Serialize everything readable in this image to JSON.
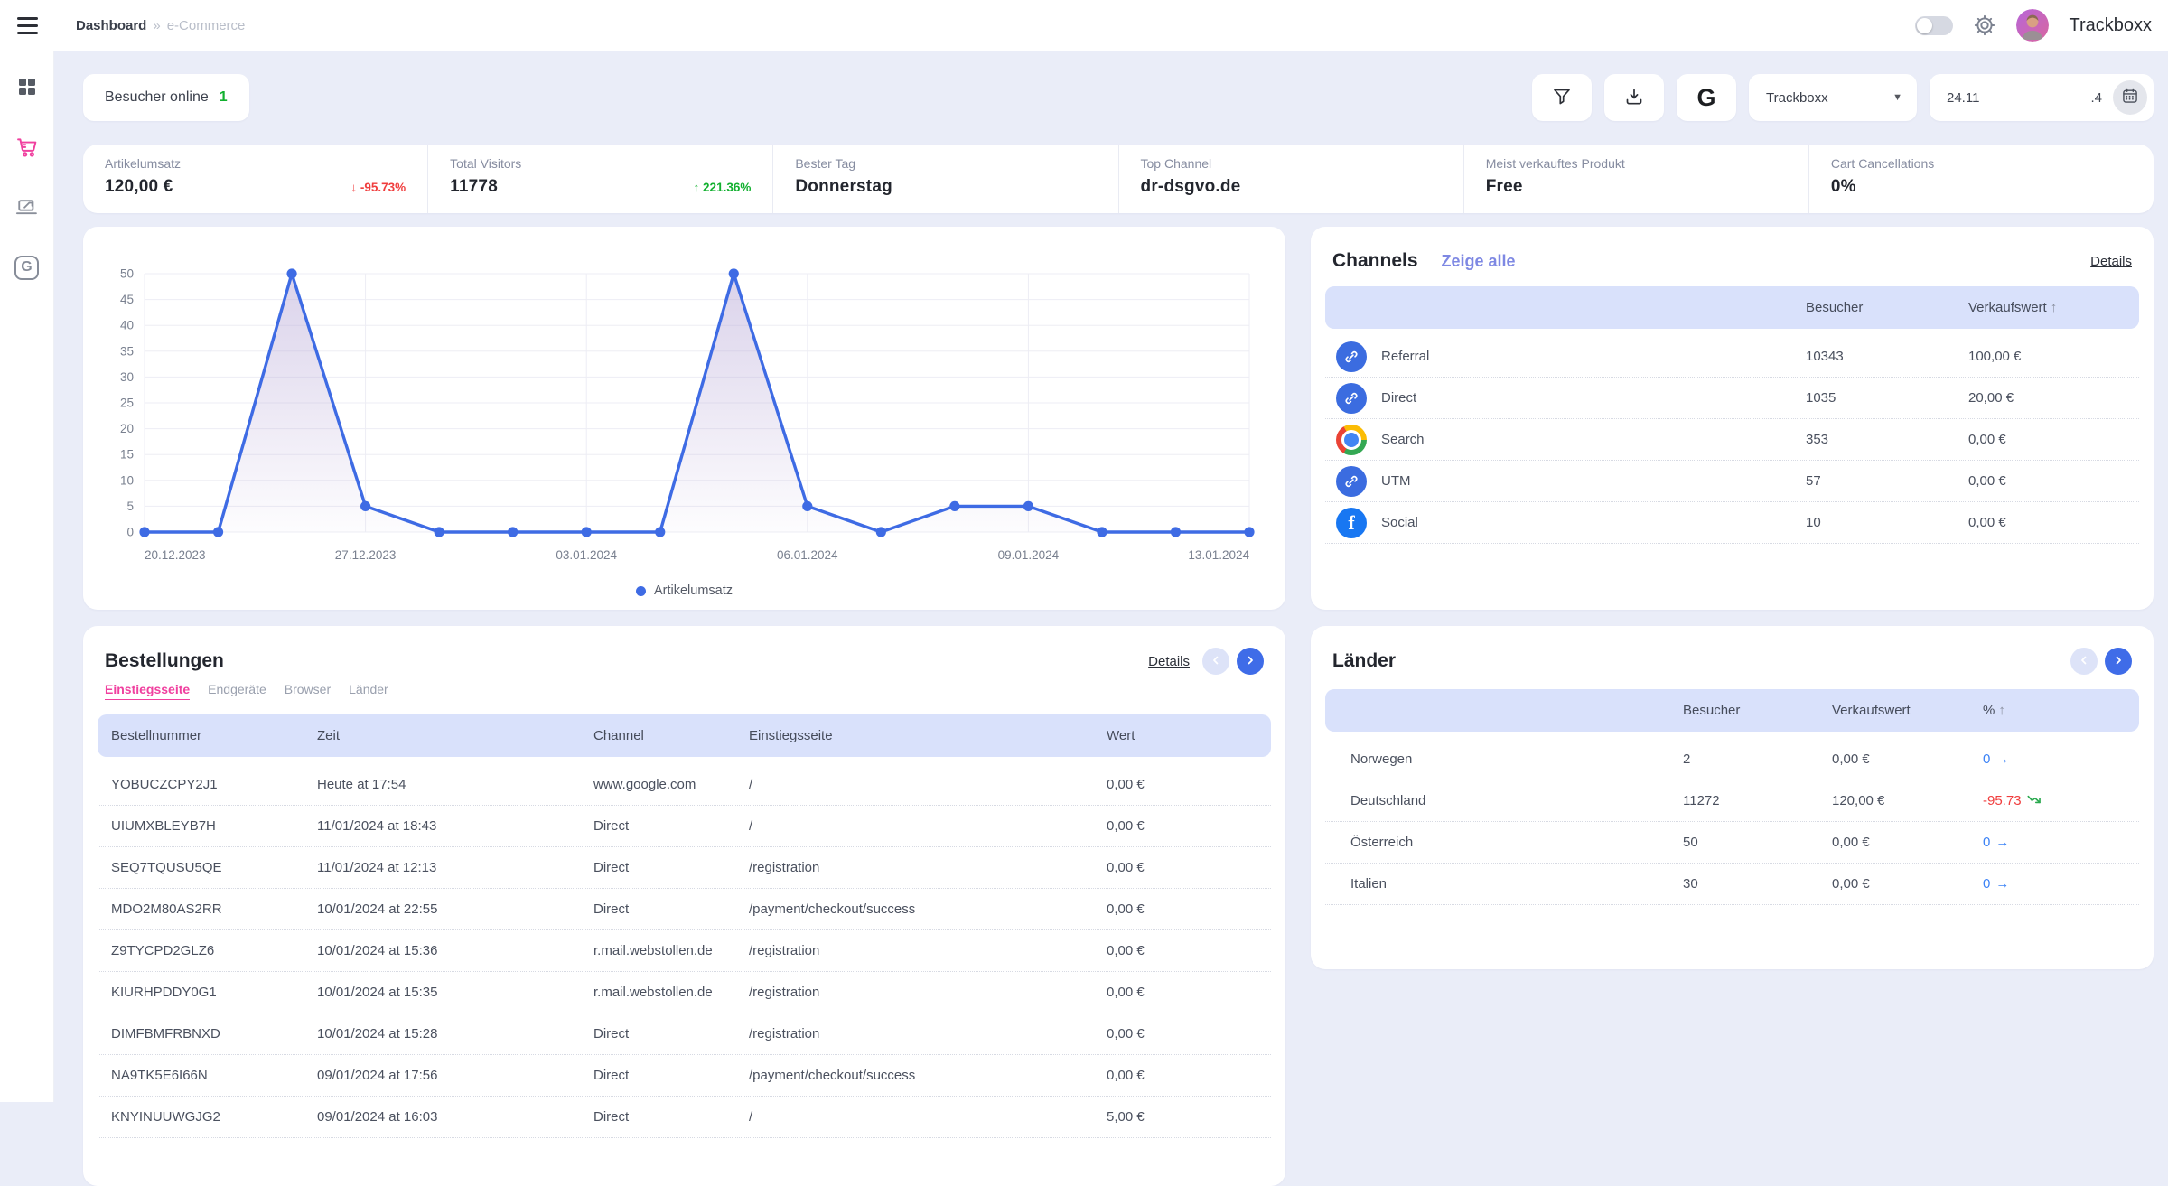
{
  "topbar": {
    "breadcrumb": {
      "section": "Dashboard",
      "separator": "»",
      "page": "e-Commerce"
    },
    "brand": "Trackboxx"
  },
  "sidebar": {
    "items": [
      {
        "icon": "grid-icon"
      },
      {
        "icon": "cart-icon",
        "active": true
      },
      {
        "icon": "laptop-link-icon"
      },
      {
        "icon": "google-icon"
      }
    ]
  },
  "toolbar": {
    "visitors_online": {
      "label": "Besucher online",
      "count": "1"
    },
    "site_select": {
      "value": "Trackboxx"
    },
    "date_range": {
      "start": "24.11",
      "end": ".4"
    }
  },
  "stats": [
    {
      "label": "Artikelumsatz",
      "value": "120,00 €",
      "trend": "↓ -95.73%",
      "trend_class": "down"
    },
    {
      "label": "Total Visitors",
      "value": "11778",
      "trend": "↑ 221.36%",
      "trend_class": "up"
    },
    {
      "label": "Bester Tag",
      "value": "Donnerstag",
      "trend": "",
      "trend_class": ""
    },
    {
      "label": "Top Channel",
      "value": "dr-dsgvo.de",
      "trend": "",
      "trend_class": ""
    },
    {
      "label": "Meist verkauftes Produkt",
      "value": "Free",
      "trend": "",
      "trend_class": ""
    },
    {
      "label": "Cart Cancellations",
      "value": "0%",
      "trend": "",
      "trend_class": ""
    }
  ],
  "chart_data": {
    "type": "line",
    "series": [
      {
        "name": "Artikelumsatz",
        "values": [
          0,
          0,
          50,
          5,
          0,
          0,
          0,
          0,
          50,
          5,
          0,
          5,
          5,
          0,
          0,
          0
        ]
      }
    ],
    "x_tick_labels": {
      "0": "20.12.2023",
      "3": "27.12.2023",
      "6": "03.01.2024",
      "9": "06.01.2024",
      "12": "09.01.2024",
      "15": "13.01.2024"
    },
    "y_ticks": [
      0,
      5,
      10,
      15,
      20,
      25,
      30,
      35,
      40,
      45,
      50
    ],
    "ylim": [
      0,
      50
    ],
    "grid": true,
    "legend": [
      "Artikelumsatz"
    ],
    "legend_position": "bottom",
    "line_color": "#3e6be4"
  },
  "channels": {
    "title": "Channels",
    "show_all": "Zeige alle",
    "details": "Details",
    "columns": {
      "besucher": "Besucher",
      "verkaufswert": "Verkaufswert",
      "sort_arrow": "↑"
    },
    "rows": [
      {
        "icon": "link-icon",
        "name": "Referral",
        "besucher": "10343",
        "verkaufswert": "100,00 €"
      },
      {
        "icon": "link-icon",
        "name": "Direct",
        "besucher": "1035",
        "verkaufswert": "20,00 €"
      },
      {
        "icon": "chrome-icon",
        "name": "Search",
        "besucher": "353",
        "verkaufswert": "0,00 €"
      },
      {
        "icon": "link-icon",
        "name": "UTM",
        "besucher": "57",
        "verkaufswert": "0,00 €"
      },
      {
        "icon": "facebook-icon",
        "name": "Social",
        "besucher": "10",
        "verkaufswert": "0,00 €"
      }
    ]
  },
  "orders": {
    "title": "Bestellungen",
    "details": "Details",
    "tabs": [
      {
        "label": "Einstiegsseite",
        "active": true
      },
      {
        "label": "Endgeräte",
        "active": false
      },
      {
        "label": "Browser",
        "active": false
      },
      {
        "label": "Länder",
        "active": false
      }
    ],
    "columns": [
      "Bestellnummer",
      "Zeit",
      "Channel",
      "Einstiegsseite",
      "Wert"
    ],
    "rows": [
      {
        "id": "YOBUCZCPY2J1",
        "zeit": "Heute at 17:54",
        "channel": "www.google.com",
        "seite": "/",
        "wert": "0,00 €"
      },
      {
        "id": "UIUMXBLEYB7H",
        "zeit": "11/01/2024 at 18:43",
        "channel": "Direct",
        "seite": "/",
        "wert": "0,00 €"
      },
      {
        "id": "SEQ7TQUSU5QE",
        "zeit": "11/01/2024 at 12:13",
        "channel": "Direct",
        "seite": "/registration",
        "wert": "0,00 €"
      },
      {
        "id": "MDO2M80AS2RR",
        "zeit": "10/01/2024 at 22:55",
        "channel": "Direct",
        "seite": "/payment/checkout/success",
        "wert": "0,00 €"
      },
      {
        "id": "Z9TYCPD2GLZ6",
        "zeit": "10/01/2024 at 15:36",
        "channel": "r.mail.webstollen.de",
        "seite": "/registration",
        "wert": "0,00 €"
      },
      {
        "id": "KIURHPDDY0G1",
        "zeit": "10/01/2024 at 15:35",
        "channel": "r.mail.webstollen.de",
        "seite": "/registration",
        "wert": "0,00 €"
      },
      {
        "id": "DIMFBMFRBNXD",
        "zeit": "10/01/2024 at 15:28",
        "channel": "Direct",
        "seite": "/registration",
        "wert": "0,00 €"
      },
      {
        "id": "NA9TK5E6I66N",
        "zeit": "09/01/2024 at 17:56",
        "channel": "Direct",
        "seite": "/payment/checkout/success",
        "wert": "0,00 €"
      },
      {
        "id": "KNYINUUWGJG2",
        "zeit": "09/01/2024 at 16:03",
        "channel": "Direct",
        "seite": "/",
        "wert": "5,00 €"
      }
    ]
  },
  "countries": {
    "title": "Länder",
    "columns": {
      "besucher": "Besucher",
      "verkaufswert": "Verkaufswert",
      "pct": "%",
      "sort_arrow": "↑"
    },
    "rows": [
      {
        "icon": "flag-norway-icon",
        "name": "Norwegen",
        "besucher": "2",
        "verkaufswert": "0,00 €",
        "pct": "0",
        "pct_class": "neutral",
        "pct_icon": "arrow-right-icon"
      },
      {
        "icon": "flag-germany-icon",
        "name": "Deutschland",
        "besucher": "11272",
        "verkaufswert": "120,00 €",
        "pct": "-95.73",
        "pct_class": "down",
        "pct_icon": "zigzag-down-icon"
      },
      {
        "icon": "flag-austria-icon",
        "name": "Österreich",
        "besucher": "50",
        "verkaufswert": "0,00 €",
        "pct": "0",
        "pct_class": "neutral",
        "pct_icon": "arrow-right-icon"
      },
      {
        "icon": "flag-italy-icon",
        "name": "Italien",
        "besucher": "30",
        "verkaufswert": "0,00 €",
        "pct": "0",
        "pct_class": "neutral",
        "pct_icon": "arrow-right-icon"
      }
    ]
  }
}
